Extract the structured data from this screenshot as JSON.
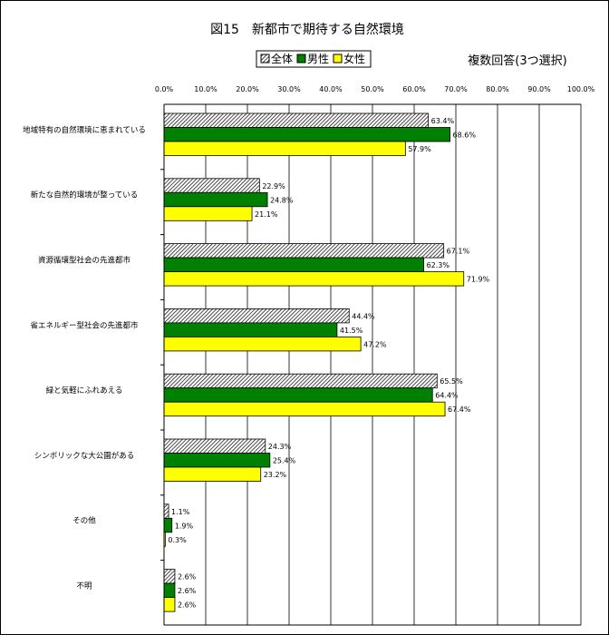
{
  "chart_data": {
    "type": "bar",
    "orientation": "horizontal",
    "title": "図15　新都市で期待する自然環境",
    "note": "複数回答(3つ選択)",
    "xlim": [
      0,
      100
    ],
    "x_ticks": [
      "0.0%",
      "10.0%",
      "20.0%",
      "30.0%",
      "40.0%",
      "50.0%",
      "60.0%",
      "70.0%",
      "80.0%",
      "90.0%",
      "100.0%"
    ],
    "grid": true,
    "legend_position": "top",
    "categories": [
      "地域特有の自然環境に恵まれている",
      "新たな自然的環境が整っている",
      "資源循環型社会の先進都市",
      "省エネルギー型社会の先進都市",
      "緑と気軽にふれあえる",
      "シンボリックな大公園がある",
      "その他",
      "不明"
    ],
    "series": [
      {
        "name": "全体",
        "color": "#ffffff",
        "pattern": "hatch",
        "values": [
          63.4,
          22.9,
          67.1,
          44.4,
          65.5,
          24.3,
          1.1,
          2.6
        ],
        "labels": [
          "63.4%",
          "22.9%",
          "67.1%",
          "44.4%",
          "65.5%",
          "24.3%",
          "1.1%",
          "2.6%"
        ]
      },
      {
        "name": "男性",
        "color": "#008000",
        "pattern": "solid",
        "values": [
          68.6,
          24.8,
          62.3,
          41.5,
          64.4,
          25.4,
          1.9,
          2.6
        ],
        "labels": [
          "68.6%",
          "24.8%",
          "62.3%",
          "41.5%",
          "64.4%",
          "25.4%",
          "1.9%",
          "2.6%"
        ]
      },
      {
        "name": "女性",
        "color": "#ffff00",
        "pattern": "solid",
        "values": [
          57.9,
          21.1,
          71.9,
          47.2,
          67.4,
          23.2,
          0.3,
          2.6
        ],
        "labels": [
          "57.9%",
          "21.1%",
          "71.9%",
          "47.2%",
          "67.4%",
          "23.2%",
          "0.3%",
          "2.6%"
        ]
      }
    ]
  }
}
